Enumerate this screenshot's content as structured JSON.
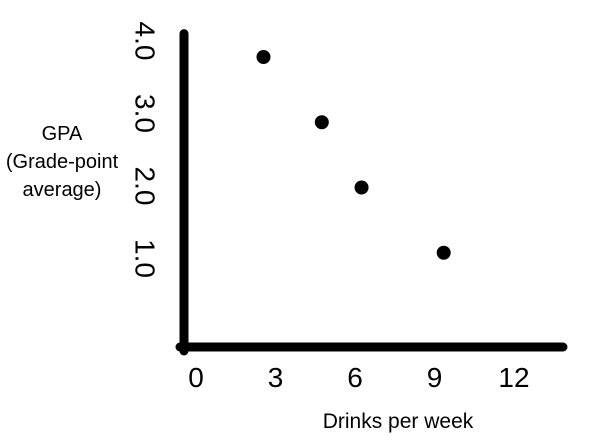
{
  "chart_data": {
    "type": "scatter",
    "title": "",
    "xlabel": "Drinks per week",
    "ylabel_lines": [
      "GPA",
      "(Grade-point",
      "average)"
    ],
    "xlim": [
      0,
      14.3
    ],
    "ylim": [
      0,
      4.35
    ],
    "x_ticks": [
      {
        "value": 0,
        "label": "0"
      },
      {
        "value": 3,
        "label": "3"
      },
      {
        "value": 6,
        "label": "6"
      },
      {
        "value": 9,
        "label": "9"
      },
      {
        "value": 12,
        "label": "12"
      }
    ],
    "y_ticks": [
      {
        "value": 1.0,
        "label": "1.0"
      },
      {
        "value": 2.0,
        "label": "2.0"
      },
      {
        "value": 3.0,
        "label": "3.0"
      },
      {
        "value": 4.0,
        "label": "4.0"
      }
    ],
    "points": [
      {
        "x": 3.0,
        "y": 4.0
      },
      {
        "x": 5.2,
        "y": 3.1
      },
      {
        "x": 6.7,
        "y": 2.2
      },
      {
        "x": 9.8,
        "y": 1.3
      }
    ],
    "grid": false,
    "legend": "none",
    "colors": {
      "axis": "#000000",
      "point": "#000000",
      "text": "#000000"
    }
  }
}
